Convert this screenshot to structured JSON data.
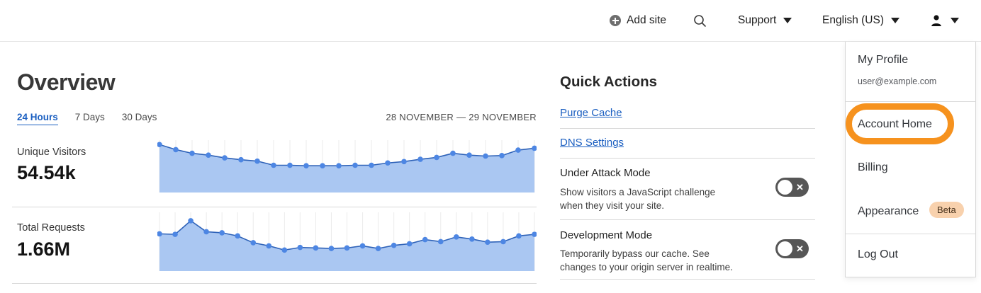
{
  "header": {
    "add_site_label": "Add site",
    "support_label": "Support",
    "language_label": "English (US)"
  },
  "main": {
    "title": "Overview",
    "tabs": [
      {
        "label": "24 Hours",
        "active": true
      },
      {
        "label": "7 Days",
        "active": false
      },
      {
        "label": "30 Days",
        "active": false
      }
    ],
    "date_range": "28 NOVEMBER — 29 NOVEMBER",
    "metrics": [
      {
        "label": "Unique Visitors",
        "value": "54.54k"
      },
      {
        "label": "Total Requests",
        "value": "1.66M"
      }
    ]
  },
  "quick_actions": {
    "title": "Quick Actions",
    "links": [
      "Purge Cache",
      "DNS Settings"
    ],
    "toggle_off_glyph": "✕",
    "toggles": [
      {
        "label": "Under Attack Mode",
        "description": "Show visitors a JavaScript challenge when they visit your site.",
        "state": "off"
      },
      {
        "label": "Development Mode",
        "description": "Temporarily bypass our cache. See changes to your origin server in realtime.",
        "state": "off"
      }
    ]
  },
  "user_menu": {
    "profile_label": "My Profile",
    "profile_email": "user@example.com",
    "items": [
      "Account Home",
      "Billing",
      "Appearance",
      "Log Out"
    ],
    "beta_badge": "Beta",
    "highlighted_item": "Account Home"
  },
  "colors": {
    "link_blue": "#1b5fc1",
    "chart_fill": "#aac7f2",
    "chart_line": "#2e62b8",
    "chart_dot": "#4d86e3",
    "chart_grid": "#ebebeb",
    "toggle_bg": "#565656",
    "annotation_orange": "#f6921e",
    "beta_badge_bg": "#f8d1ad",
    "divider_gray": "#d9d9d9"
  },
  "chart_data": [
    {
      "type": "area",
      "title": "Unique Visitors",
      "total": "54.54k",
      "period": "24 Hours",
      "x_start": "28 November",
      "x_end": "29 November",
      "unit": "relative height (0-100, unlabeled sparkline)",
      "values": [
        95,
        84,
        76,
        72,
        66,
        62,
        59,
        50,
        50,
        49,
        49,
        49,
        50,
        50,
        55,
        58,
        63,
        67,
        76,
        72,
        70,
        71,
        83,
        87
      ],
      "grid": "vertical-only",
      "legend": "none"
    },
    {
      "type": "area",
      "title": "Total Requests",
      "total": "1.66M",
      "period": "24 Hours",
      "x_start": "28 November",
      "x_end": "29 November",
      "unit": "relative height (0-100, unlabeled sparkline)",
      "values": [
        63,
        62,
        88,
        67,
        65,
        59,
        46,
        40,
        32,
        37,
        36,
        35,
        36,
        40,
        35,
        41,
        44,
        52,
        48,
        57,
        53,
        47,
        48,
        59,
        62
      ],
      "grid": "vertical-only",
      "legend": "none"
    }
  ]
}
